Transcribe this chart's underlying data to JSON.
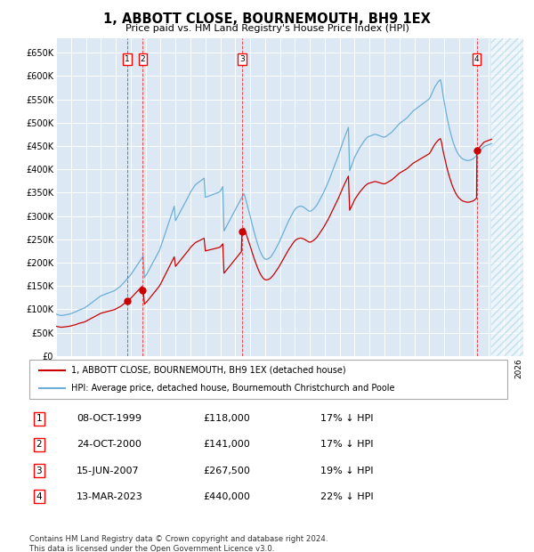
{
  "title": "1, ABBOTT CLOSE, BOURNEMOUTH, BH9 1EX",
  "subtitle": "Price paid vs. HM Land Registry's House Price Index (HPI)",
  "hpi_color": "#6baed6",
  "price_color": "#cc0000",
  "background_color": "#dce9f5",
  "ylim": [
    0,
    680000
  ],
  "yticks": [
    0,
    50000,
    100000,
    150000,
    200000,
    250000,
    300000,
    350000,
    400000,
    450000,
    500000,
    550000,
    600000,
    650000
  ],
  "ytick_labels": [
    "£0",
    "£50K",
    "£100K",
    "£150K",
    "£200K",
    "£250K",
    "£300K",
    "£350K",
    "£400K",
    "£450K",
    "£500K",
    "£550K",
    "£600K",
    "£650K"
  ],
  "sales": [
    {
      "label": "1",
      "date": "08-OCT-1999",
      "year": 1999.78,
      "price": 118000,
      "hpi_pct": "17% ↓ HPI"
    },
    {
      "label": "2",
      "date": "24-OCT-2000",
      "year": 2000.81,
      "price": 141000,
      "hpi_pct": "17% ↓ HPI"
    },
    {
      "label": "3",
      "date": "15-JUN-2007",
      "year": 2007.45,
      "price": 267500,
      "hpi_pct": "19% ↓ HPI"
    },
    {
      "label": "4",
      "date": "13-MAR-2023",
      "year": 2023.19,
      "price": 440000,
      "hpi_pct": "22% ↓ HPI"
    }
  ],
  "legend_label_red": "1, ABBOTT CLOSE, BOURNEMOUTH, BH9 1EX (detached house)",
  "legend_label_blue": "HPI: Average price, detached house, Bournemouth Christchurch and Poole",
  "footer": "Contains HM Land Registry data © Crown copyright and database right 2024.\nThis data is licensed under the Open Government Licence v3.0.",
  "hpi_data_years": [
    1995.0,
    1995.083,
    1995.167,
    1995.25,
    1995.333,
    1995.417,
    1995.5,
    1995.583,
    1995.667,
    1995.75,
    1995.833,
    1995.917,
    1996.0,
    1996.083,
    1996.167,
    1996.25,
    1996.333,
    1996.417,
    1996.5,
    1996.583,
    1996.667,
    1996.75,
    1996.833,
    1996.917,
    1997.0,
    1997.083,
    1997.167,
    1997.25,
    1997.333,
    1997.417,
    1997.5,
    1997.583,
    1997.667,
    1997.75,
    1997.833,
    1997.917,
    1998.0,
    1998.083,
    1998.167,
    1998.25,
    1998.333,
    1998.417,
    1998.5,
    1998.583,
    1998.667,
    1998.75,
    1998.833,
    1998.917,
    1999.0,
    1999.083,
    1999.167,
    1999.25,
    1999.333,
    1999.417,
    1999.5,
    1999.583,
    1999.667,
    1999.75,
    1999.833,
    1999.917,
    2000.0,
    2000.083,
    2000.167,
    2000.25,
    2000.333,
    2000.417,
    2000.5,
    2000.583,
    2000.667,
    2000.75,
    2000.833,
    2000.917,
    2001.0,
    2001.083,
    2001.167,
    2001.25,
    2001.333,
    2001.417,
    2001.5,
    2001.583,
    2001.667,
    2001.75,
    2001.833,
    2001.917,
    2002.0,
    2002.083,
    2002.167,
    2002.25,
    2002.333,
    2002.417,
    2002.5,
    2002.583,
    2002.667,
    2002.75,
    2002.833,
    2002.917,
    2003.0,
    2003.083,
    2003.167,
    2003.25,
    2003.333,
    2003.417,
    2003.5,
    2003.583,
    2003.667,
    2003.75,
    2003.833,
    2003.917,
    2004.0,
    2004.083,
    2004.167,
    2004.25,
    2004.333,
    2004.417,
    2004.5,
    2004.583,
    2004.667,
    2004.75,
    2004.833,
    2004.917,
    2005.0,
    2005.083,
    2005.167,
    2005.25,
    2005.333,
    2005.417,
    2005.5,
    2005.583,
    2005.667,
    2005.75,
    2005.833,
    2005.917,
    2006.0,
    2006.083,
    2006.167,
    2006.25,
    2006.333,
    2006.417,
    2006.5,
    2006.583,
    2006.667,
    2006.75,
    2006.833,
    2006.917,
    2007.0,
    2007.083,
    2007.167,
    2007.25,
    2007.333,
    2007.417,
    2007.5,
    2007.583,
    2007.667,
    2007.75,
    2007.833,
    2007.917,
    2008.0,
    2008.083,
    2008.167,
    2008.25,
    2008.333,
    2008.417,
    2008.5,
    2008.583,
    2008.667,
    2008.75,
    2008.833,
    2008.917,
    2009.0,
    2009.083,
    2009.167,
    2009.25,
    2009.333,
    2009.417,
    2009.5,
    2009.583,
    2009.667,
    2009.75,
    2009.833,
    2009.917,
    2010.0,
    2010.083,
    2010.167,
    2010.25,
    2010.333,
    2010.417,
    2010.5,
    2010.583,
    2010.667,
    2010.75,
    2010.833,
    2010.917,
    2011.0,
    2011.083,
    2011.167,
    2011.25,
    2011.333,
    2011.417,
    2011.5,
    2011.583,
    2011.667,
    2011.75,
    2011.833,
    2011.917,
    2012.0,
    2012.083,
    2012.167,
    2012.25,
    2012.333,
    2012.417,
    2012.5,
    2012.583,
    2012.667,
    2012.75,
    2012.833,
    2012.917,
    2013.0,
    2013.083,
    2013.167,
    2013.25,
    2013.333,
    2013.417,
    2013.5,
    2013.583,
    2013.667,
    2013.75,
    2013.833,
    2013.917,
    2014.0,
    2014.083,
    2014.167,
    2014.25,
    2014.333,
    2014.417,
    2014.5,
    2014.583,
    2014.667,
    2014.75,
    2014.833,
    2014.917,
    2015.0,
    2015.083,
    2015.167,
    2015.25,
    2015.333,
    2015.417,
    2015.5,
    2015.583,
    2015.667,
    2015.75,
    2015.833,
    2015.917,
    2016.0,
    2016.083,
    2016.167,
    2016.25,
    2016.333,
    2016.417,
    2016.5,
    2016.583,
    2016.667,
    2016.75,
    2016.833,
    2016.917,
    2017.0,
    2017.083,
    2017.167,
    2017.25,
    2017.333,
    2017.417,
    2017.5,
    2017.583,
    2017.667,
    2017.75,
    2017.833,
    2017.917,
    2018.0,
    2018.083,
    2018.167,
    2018.25,
    2018.333,
    2018.417,
    2018.5,
    2018.583,
    2018.667,
    2018.75,
    2018.833,
    2018.917,
    2019.0,
    2019.083,
    2019.167,
    2019.25,
    2019.333,
    2019.417,
    2019.5,
    2019.583,
    2019.667,
    2019.75,
    2019.833,
    2019.917,
    2020.0,
    2020.083,
    2020.167,
    2020.25,
    2020.333,
    2020.417,
    2020.5,
    2020.583,
    2020.667,
    2020.75,
    2020.833,
    2020.917,
    2021.0,
    2021.083,
    2021.167,
    2021.25,
    2021.333,
    2021.417,
    2021.5,
    2021.583,
    2021.667,
    2021.75,
    2021.833,
    2021.917,
    2022.0,
    2022.083,
    2022.167,
    2022.25,
    2022.333,
    2022.417,
    2022.5,
    2022.583,
    2022.667,
    2022.75,
    2022.833,
    2022.917,
    2023.0,
    2023.083,
    2023.167,
    2023.25,
    2023.333,
    2023.417,
    2023.5,
    2023.583,
    2023.667,
    2023.75,
    2023.833,
    2023.917,
    2024.0,
    2024.083,
    2024.167
  ],
  "hpi_data_values": [
    90000,
    89000,
    88000,
    87500,
    87000,
    87000,
    87500,
    88000,
    88500,
    89000,
    89500,
    90000,
    91000,
    92000,
    93000,
    94000,
    95000,
    96500,
    98000,
    99000,
    100000,
    101000,
    102000,
    103000,
    105000,
    107000,
    109000,
    111000,
    113000,
    115000,
    117000,
    119000,
    121000,
    123000,
    125000,
    127000,
    129000,
    130000,
    131000,
    132000,
    133000,
    134000,
    135000,
    136000,
    137000,
    138000,
    139000,
    140000,
    142000,
    144000,
    146000,
    148000,
    150000,
    153000,
    156000,
    159000,
    162000,
    165000,
    168000,
    171000,
    174000,
    178000,
    182000,
    186000,
    190000,
    194000,
    198000,
    202000,
    206000,
    210000,
    214000,
    168000,
    172000,
    176000,
    181000,
    186000,
    191000,
    196000,
    201000,
    206000,
    211000,
    216000,
    221000,
    226000,
    233000,
    241000,
    249000,
    257000,
    265000,
    273000,
    281000,
    289000,
    297000,
    305000,
    313000,
    321000,
    290000,
    295000,
    300000,
    305000,
    310000,
    315000,
    320000,
    325000,
    330000,
    335000,
    340000,
    345000,
    351000,
    355000,
    359000,
    363000,
    367000,
    369000,
    371000,
    373000,
    375000,
    377000,
    379000,
    381000,
    340000,
    341000,
    342000,
    343000,
    344000,
    345000,
    346000,
    347000,
    348000,
    349000,
    350000,
    351000,
    353000,
    358000,
    363000,
    268000,
    273000,
    278000,
    283000,
    288000,
    293000,
    298000,
    303000,
    308000,
    313000,
    318000,
    323000,
    328000,
    333000,
    338000,
    343000,
    348000,
    340000,
    330000,
    320000,
    310000,
    300000,
    289000,
    278000,
    268000,
    258000,
    249000,
    240000,
    232000,
    225000,
    219000,
    214000,
    210000,
    208000,
    207000,
    208000,
    209000,
    211000,
    214000,
    218000,
    222000,
    227000,
    232000,
    237000,
    242000,
    248000,
    254000,
    260000,
    266000,
    272000,
    278000,
    284000,
    290000,
    295000,
    300000,
    305000,
    310000,
    314000,
    317000,
    319000,
    320000,
    321000,
    321000,
    320000,
    319000,
    317000,
    315000,
    313000,
    311000,
    310000,
    311000,
    313000,
    315000,
    318000,
    321000,
    325000,
    330000,
    335000,
    340000,
    345000,
    350000,
    356000,
    362000,
    368000,
    374000,
    381000,
    388000,
    395000,
    402000,
    409000,
    416000,
    423000,
    430000,
    438000,
    446000,
    454000,
    462000,
    469000,
    476000,
    483000,
    490000,
    397000,
    404000,
    411000,
    418000,
    426000,
    431000,
    436000,
    441000,
    446000,
    450000,
    454000,
    458000,
    462000,
    465000,
    468000,
    470000,
    471000,
    472000,
    473000,
    474000,
    475000,
    475000,
    474000,
    473000,
    472000,
    471000,
    470000,
    469000,
    469000,
    470000,
    472000,
    474000,
    476000,
    478000,
    480000,
    483000,
    486000,
    489000,
    492000,
    495000,
    498000,
    500000,
    502000,
    504000,
    506000,
    508000,
    510000,
    513000,
    516000,
    519000,
    522000,
    525000,
    527000,
    529000,
    531000,
    533000,
    535000,
    537000,
    539000,
    541000,
    543000,
    545000,
    547000,
    549000,
    551000,
    556000,
    562000,
    568000,
    574000,
    579000,
    583000,
    587000,
    590000,
    592000,
    580000,
    560000,
    545000,
    530000,
    515000,
    502000,
    490000,
    479000,
    469000,
    460000,
    452000,
    445000,
    439000,
    434000,
    430000,
    427000,
    424000,
    422000,
    421000,
    420000,
    419000,
    419000,
    419000,
    420000,
    421000,
    422000,
    424000,
    427000,
    430000,
    434000,
    437000,
    440000,
    443000,
    446000,
    449000,
    450000,
    451000,
    452000,
    453000,
    454000,
    455000
  ],
  "xlim": [
    1995,
    2026
  ],
  "xticks": [
    1995,
    1996,
    1997,
    1998,
    1999,
    2000,
    2001,
    2002,
    2003,
    2004,
    2005,
    2006,
    2007,
    2008,
    2009,
    2010,
    2011,
    2012,
    2013,
    2014,
    2015,
    2016,
    2017,
    2018,
    2019,
    2020,
    2021,
    2022,
    2023,
    2024,
    2025,
    2026
  ]
}
